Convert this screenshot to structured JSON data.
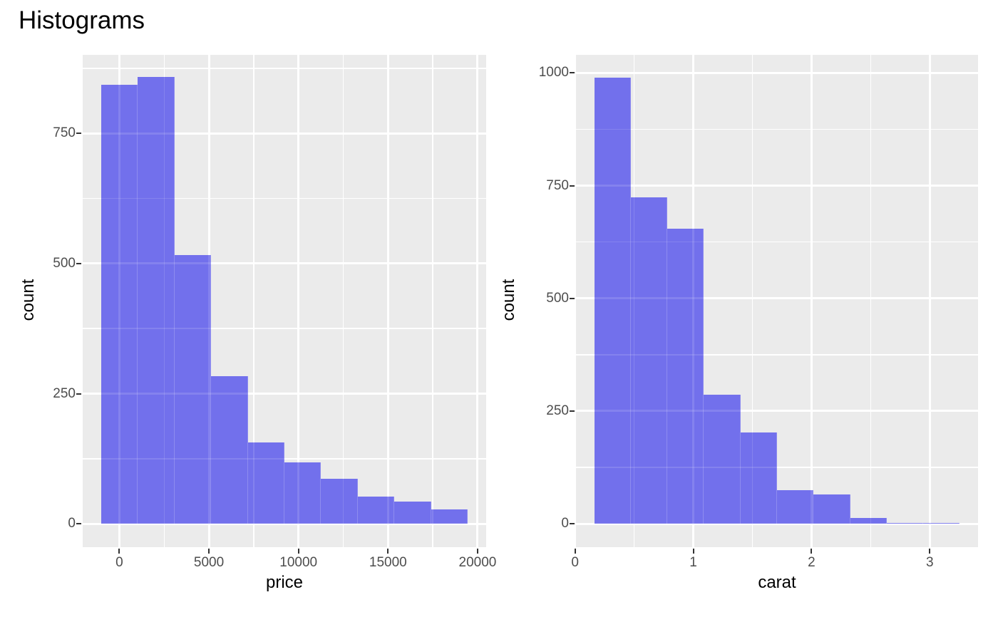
{
  "title": "Histograms",
  "chart_data": [
    {
      "type": "bar",
      "subtype": "histogram",
      "title": "",
      "xlabel": "price",
      "ylabel": "count",
      "bin_start": -1024,
      "bin_width": 2048,
      "counts": [
        843,
        858,
        516,
        283,
        156,
        118,
        86,
        52,
        42,
        27
      ],
      "xlim": [
        -2048,
        20480
      ],
      "ylim": [
        -45,
        901
      ],
      "x_major_ticks": [
        0,
        5000,
        10000,
        15000,
        20000
      ],
      "x_tick_labels": [
        "0",
        "5000",
        "10000",
        "15000",
        "20000"
      ],
      "x_minor_ticks": [
        2500,
        7500,
        12500,
        17500
      ],
      "y_major_ticks": [
        0,
        250,
        500,
        750
      ],
      "y_tick_labels": [
        "0",
        "250",
        "500",
        "750"
      ],
      "y_minor_ticks": [
        125,
        375,
        625,
        875
      ],
      "grid": true,
      "legend": "none",
      "bar_color": "#7270ec",
      "panel_color": "#ebebeb",
      "grid_color": "#ffffff",
      "tick_text_color": "#4d4d4d",
      "axis_title_color": "#000000"
    },
    {
      "type": "bar",
      "subtype": "histogram",
      "title": "",
      "xlabel": "carat",
      "ylabel": "count",
      "bin_start": 0.163,
      "bin_width": 0.309,
      "counts": [
        990,
        724,
        654,
        286,
        203,
        74,
        65,
        13,
        2,
        1
      ],
      "xlim": [
        0.008,
        3.408
      ],
      "ylim": [
        -52,
        1040
      ],
      "x_major_ticks": [
        0,
        1,
        2,
        3
      ],
      "x_tick_labels": [
        "0",
        "1",
        "2",
        "3"
      ],
      "x_minor_ticks": [
        0.5,
        1.5,
        2.5
      ],
      "y_major_ticks": [
        0,
        250,
        500,
        750,
        1000
      ],
      "y_tick_labels": [
        "0",
        "250",
        "500",
        "750",
        "1000"
      ],
      "y_minor_ticks": [
        125,
        375,
        625,
        875
      ],
      "grid": true,
      "legend": "none",
      "bar_color": "#7270ec",
      "panel_color": "#ebebeb",
      "grid_color": "#ffffff",
      "tick_text_color": "#4d4d4d",
      "axis_title_color": "#000000"
    }
  ]
}
